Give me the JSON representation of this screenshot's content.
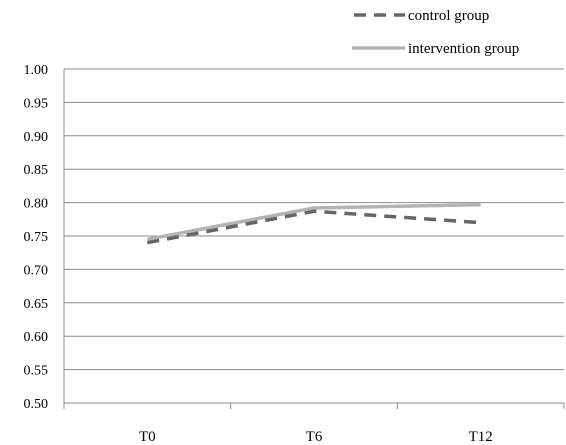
{
  "chart_data": {
    "type": "line",
    "title": "",
    "xlabel": "",
    "ylabel": "",
    "categories": [
      "T0",
      "T6",
      "T12"
    ],
    "ylim": [
      0.5,
      1.0
    ],
    "yticks": [
      "0.50",
      "0.55",
      "0.60",
      "0.65",
      "0.70",
      "0.75",
      "0.80",
      "0.85",
      "0.90",
      "0.95",
      "1.00"
    ],
    "grid": true,
    "legend_position": "top-right",
    "series": [
      {
        "name": "control group",
        "values": [
          0.74,
          0.787,
          0.77
        ],
        "color": "#666666",
        "style": "dashed"
      },
      {
        "name": "intervention group",
        "values": [
          0.745,
          0.792,
          0.797
        ],
        "color": "#b3b3b3",
        "style": "solid"
      }
    ]
  }
}
